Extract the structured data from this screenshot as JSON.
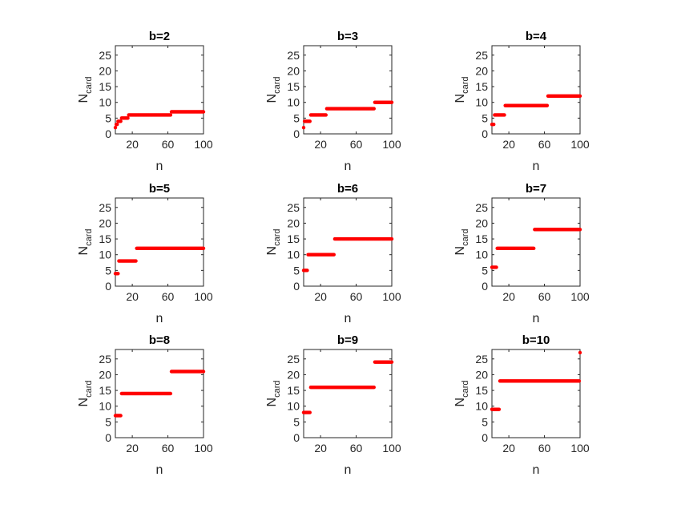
{
  "chart_data": [
    {
      "type": "scatter",
      "title": "b=2",
      "xlabel": "n",
      "ylabel_main": "N",
      "ylabel_sub": "card",
      "xlim": [
        1,
        100
      ],
      "ylim": [
        0,
        28
      ],
      "xticks": [
        20,
        60,
        100
      ],
      "yticks": [
        0,
        5,
        10,
        15,
        20,
        25
      ],
      "grid": false,
      "color": "#ff0000",
      "segments": [
        {
          "x": [
            1,
            1
          ],
          "y": 2
        },
        {
          "x": [
            2,
            3
          ],
          "y": 3
        },
        {
          "x": [
            4,
            7
          ],
          "y": 4
        },
        {
          "x": [
            8,
            15
          ],
          "y": 5
        },
        {
          "x": [
            16,
            31
          ],
          "y": 6
        },
        {
          "x": [
            32,
            63
          ],
          "y": 6
        },
        {
          "x": [
            64,
            100
          ],
          "y": 7
        }
      ]
    },
    {
      "type": "scatter",
      "title": "b=3",
      "xlabel": "n",
      "ylabel_main": "N",
      "ylabel_sub": "card",
      "xlim": [
        1,
        100
      ],
      "ylim": [
        0,
        28
      ],
      "xticks": [
        20,
        60,
        100
      ],
      "yticks": [
        0,
        5,
        10,
        15,
        20,
        25
      ],
      "grid": false,
      "color": "#ff0000",
      "segments": [
        {
          "x": [
            1,
            1
          ],
          "y": 2
        },
        {
          "x": [
            2,
            8
          ],
          "y": 4
        },
        {
          "x": [
            9,
            26
          ],
          "y": 6
        },
        {
          "x": [
            27,
            80
          ],
          "y": 8
        },
        {
          "x": [
            81,
            100
          ],
          "y": 10
        }
      ]
    },
    {
      "type": "scatter",
      "title": "b=4",
      "xlabel": "n",
      "ylabel_main": "N",
      "ylabel_sub": "card",
      "xlim": [
        1,
        100
      ],
      "ylim": [
        0,
        28
      ],
      "xticks": [
        20,
        60,
        100
      ],
      "yticks": [
        0,
        5,
        10,
        15,
        20,
        25
      ],
      "grid": false,
      "color": "#ff0000",
      "segments": [
        {
          "x": [
            1,
            3
          ],
          "y": 3
        },
        {
          "x": [
            4,
            15
          ],
          "y": 6
        },
        {
          "x": [
            16,
            63
          ],
          "y": 9
        },
        {
          "x": [
            64,
            100
          ],
          "y": 12
        }
      ]
    },
    {
      "type": "scatter",
      "title": "b=5",
      "xlabel": "n",
      "ylabel_main": "N",
      "ylabel_sub": "card",
      "xlim": [
        1,
        100
      ],
      "ylim": [
        0,
        28
      ],
      "xticks": [
        20,
        60,
        100
      ],
      "yticks": [
        0,
        5,
        10,
        15,
        20,
        25
      ],
      "grid": false,
      "color": "#ff0000",
      "segments": [
        {
          "x": [
            1,
            4
          ],
          "y": 4
        },
        {
          "x": [
            5,
            24
          ],
          "y": 8
        },
        {
          "x": [
            25,
            100
          ],
          "y": 12
        }
      ]
    },
    {
      "type": "scatter",
      "title": "b=6",
      "xlabel": "n",
      "ylabel_main": "N",
      "ylabel_sub": "card",
      "xlim": [
        1,
        100
      ],
      "ylim": [
        0,
        28
      ],
      "xticks": [
        20,
        60,
        100
      ],
      "yticks": [
        0,
        5,
        10,
        15,
        20,
        25
      ],
      "grid": false,
      "color": "#ff0000",
      "segments": [
        {
          "x": [
            1,
            5
          ],
          "y": 5
        },
        {
          "x": [
            6,
            35
          ],
          "y": 10
        },
        {
          "x": [
            36,
            100
          ],
          "y": 15
        }
      ]
    },
    {
      "type": "scatter",
      "title": "b=7",
      "xlabel": "n",
      "ylabel_main": "N",
      "ylabel_sub": "card",
      "xlim": [
        1,
        100
      ],
      "ylim": [
        0,
        28
      ],
      "xticks": [
        20,
        60,
        100
      ],
      "yticks": [
        0,
        5,
        10,
        15,
        20,
        25
      ],
      "grid": false,
      "color": "#ff0000",
      "segments": [
        {
          "x": [
            1,
            6
          ],
          "y": 6
        },
        {
          "x": [
            7,
            48
          ],
          "y": 12
        },
        {
          "x": [
            49,
            100
          ],
          "y": 18
        }
      ]
    },
    {
      "type": "scatter",
      "title": "b=8",
      "xlabel": "n",
      "ylabel_main": "N",
      "ylabel_sub": "card",
      "xlim": [
        1,
        100
      ],
      "ylim": [
        0,
        28
      ],
      "xticks": [
        20,
        60,
        100
      ],
      "yticks": [
        0,
        5,
        10,
        15,
        20,
        25
      ],
      "grid": false,
      "color": "#ff0000",
      "segments": [
        {
          "x": [
            1,
            7
          ],
          "y": 7
        },
        {
          "x": [
            8,
            63
          ],
          "y": 14
        },
        {
          "x": [
            64,
            100
          ],
          "y": 21
        }
      ]
    },
    {
      "type": "scatter",
      "title": "b=9",
      "xlabel": "n",
      "ylabel_main": "N",
      "ylabel_sub": "card",
      "xlim": [
        1,
        100
      ],
      "ylim": [
        0,
        28
      ],
      "xticks": [
        20,
        60,
        100
      ],
      "yticks": [
        0,
        5,
        10,
        15,
        20,
        25
      ],
      "grid": false,
      "color": "#ff0000",
      "segments": [
        {
          "x": [
            1,
            8
          ],
          "y": 8
        },
        {
          "x": [
            9,
            80
          ],
          "y": 16
        },
        {
          "x": [
            81,
            100
          ],
          "y": 24
        }
      ]
    },
    {
      "type": "scatter",
      "title": "b=10",
      "xlabel": "n",
      "ylabel_main": "N",
      "ylabel_sub": "card",
      "xlim": [
        1,
        100
      ],
      "ylim": [
        0,
        28
      ],
      "xticks": [
        20,
        60,
        100
      ],
      "yticks": [
        0,
        5,
        10,
        15,
        20,
        25
      ],
      "grid": false,
      "color": "#ff0000",
      "segments": [
        {
          "x": [
            1,
            9
          ],
          "y": 9
        },
        {
          "x": [
            10,
            99
          ],
          "y": 18
        },
        {
          "x": [
            100,
            100
          ],
          "y": 27
        }
      ]
    }
  ]
}
